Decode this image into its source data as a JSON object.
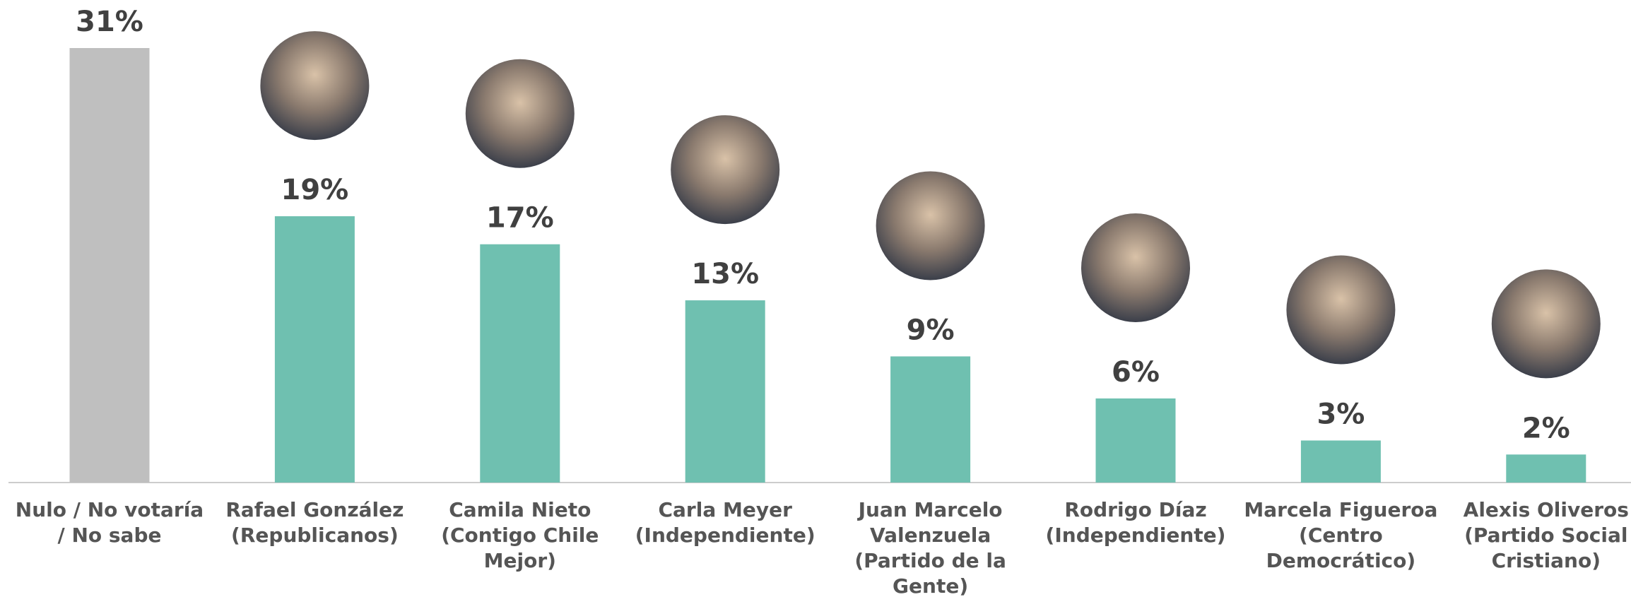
{
  "chart_data": {
    "type": "bar",
    "categories": [
      "Nulo / No votaría / No sabe",
      "Rafael González (Republicanos)",
      "Camila Nieto (Contigo Chile Mejor)",
      "Carla Meyer (Independiente)",
      "Juan Marcelo Valenzuela (Partido de la Gente)",
      "Rodrigo Díaz (Independiente)",
      "Marcela Figueroa (Centro Democrático)",
      "Alexis Oliveros (Partido Social Cristiano)"
    ],
    "values": [
      31,
      19,
      17,
      13,
      9,
      6,
      3,
      2
    ],
    "value_labels": [
      "31%",
      "19%",
      "17%",
      "13%",
      "9%",
      "6%",
      "3%",
      "2%"
    ],
    "colors": [
      "#bfbfbf",
      "#6fc0b0",
      "#6fc0b0",
      "#6fc0b0",
      "#6fc0b0",
      "#6fc0b0",
      "#6fc0b0",
      "#6fc0b0"
    ]
  }
}
